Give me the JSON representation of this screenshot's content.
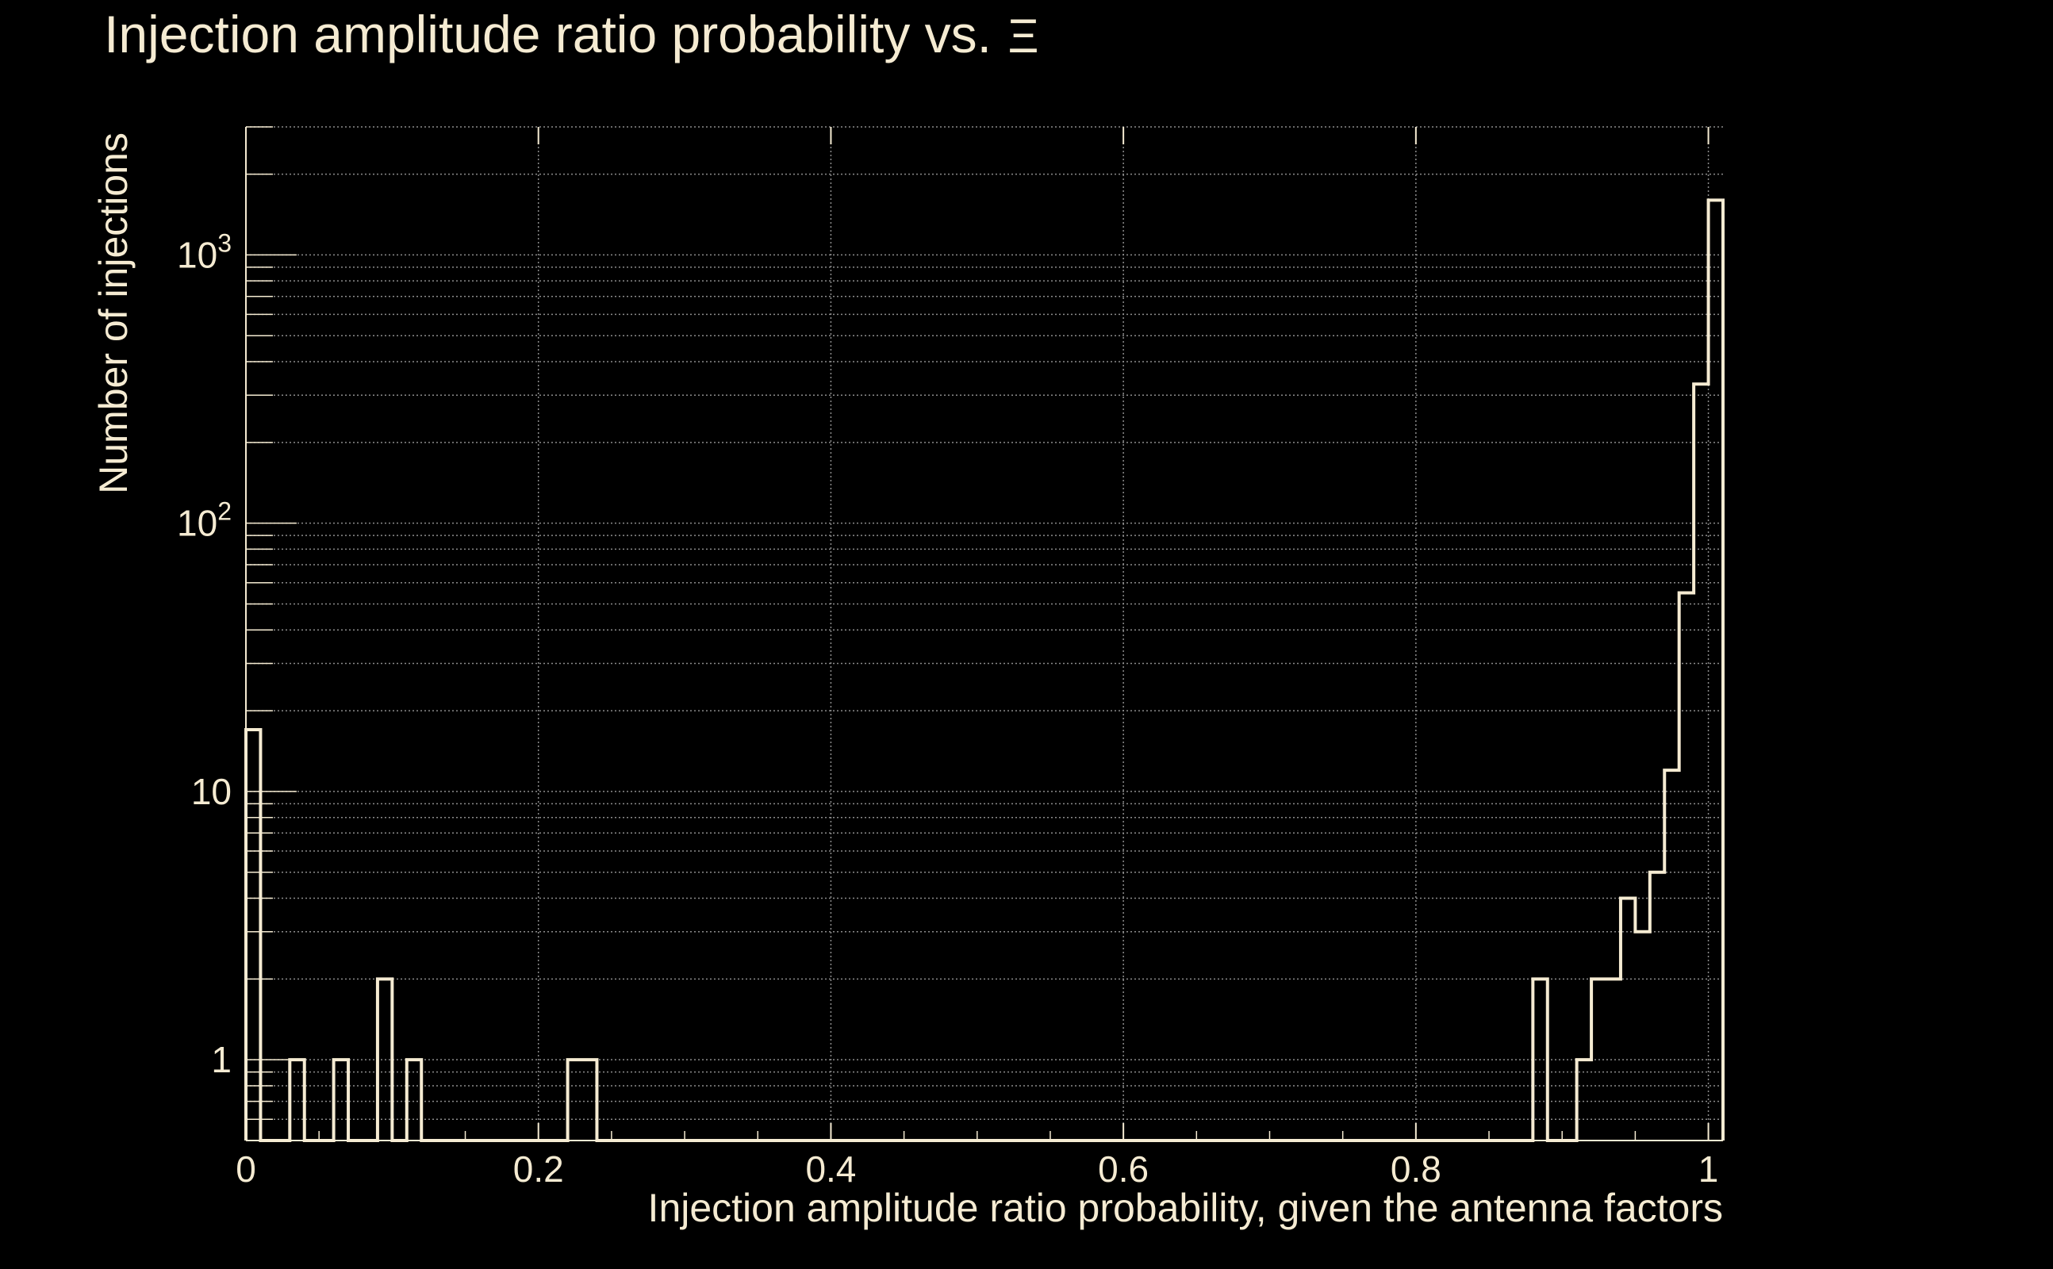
{
  "chart_data": {
    "type": "step-histogram",
    "title": "Injection amplitude ratio probability vs.",
    "title_symbol": "Ξ",
    "xlabel": "Injection amplitude ratio probability, given the antenna factors",
    "ylabel": "Number of injections",
    "xlim": [
      0,
      1.01
    ],
    "ylim": [
      0.5,
      3000
    ],
    "yscale": "log",
    "grid": true,
    "colors": {
      "background": "#000000",
      "foreground": "#f5ebd2",
      "grid": "#8c8c8c"
    },
    "x_ticks": [
      {
        "value": 0,
        "label": "0"
      },
      {
        "value": 0.2,
        "label": "0.2"
      },
      {
        "value": 0.4,
        "label": "0.4"
      },
      {
        "value": 0.6,
        "label": "0.6"
      },
      {
        "value": 0.8,
        "label": "0.8"
      },
      {
        "value": 1,
        "label": "1"
      }
    ],
    "y_ticks": [
      {
        "value": 1,
        "base": "1",
        "exp": ""
      },
      {
        "value": 10,
        "base": "10",
        "exp": ""
      },
      {
        "value": 100,
        "base": "10",
        "exp": "2"
      },
      {
        "value": 1000,
        "base": "10",
        "exp": "3"
      }
    ],
    "bin_width": 0.01,
    "bins": [
      {
        "x": 0.0,
        "count": 17
      },
      {
        "x": 0.03,
        "count": 1
      },
      {
        "x": 0.06,
        "count": 1
      },
      {
        "x": 0.09,
        "count": 2
      },
      {
        "x": 0.11,
        "count": 1
      },
      {
        "x": 0.22,
        "count": 1
      },
      {
        "x": 0.23,
        "count": 1
      },
      {
        "x": 0.88,
        "count": 2
      },
      {
        "x": 0.91,
        "count": 1
      },
      {
        "x": 0.92,
        "count": 2
      },
      {
        "x": 0.93,
        "count": 2
      },
      {
        "x": 0.94,
        "count": 4
      },
      {
        "x": 0.95,
        "count": 3
      },
      {
        "x": 0.96,
        "count": 5
      },
      {
        "x": 0.97,
        "count": 12
      },
      {
        "x": 0.98,
        "count": 55
      },
      {
        "x": 0.99,
        "count": 330
      },
      {
        "x": 1.0,
        "count": 1600
      }
    ]
  }
}
